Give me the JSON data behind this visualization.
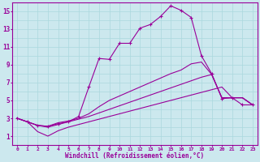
{
  "xlabel": "Windchill (Refroidissement éolien,°C)",
  "bg_color": "#cce8ee",
  "line_color": "#990099",
  "grid_color": "#aad8dd",
  "xlim": [
    -0.5,
    23.5
  ],
  "ylim": [
    0,
    16
  ],
  "yticks": [
    1,
    3,
    5,
    7,
    9,
    11,
    13,
    15
  ],
  "xticks": [
    0,
    1,
    2,
    3,
    4,
    5,
    6,
    7,
    8,
    9,
    10,
    11,
    12,
    13,
    14,
    15,
    16,
    17,
    18,
    19,
    20,
    21,
    22,
    23
  ],
  "xgrid": [
    0,
    1,
    2,
    3,
    4,
    5,
    6,
    7,
    8,
    9,
    10,
    11,
    12,
    13,
    14,
    15,
    16,
    17,
    18,
    19,
    20,
    21,
    22,
    23
  ],
  "ygrid": [
    1,
    2,
    3,
    4,
    5,
    6,
    7,
    8,
    9,
    10,
    11,
    12,
    13,
    14,
    15
  ],
  "curve1_x": [
    0,
    1,
    2,
    3,
    4,
    5,
    6,
    7,
    8,
    9,
    10,
    11,
    12,
    13,
    14,
    15,
    16,
    17,
    18,
    19,
    20,
    21,
    22,
    23
  ],
  "curve1_y": [
    3.0,
    2.6,
    2.2,
    2.1,
    2.4,
    2.6,
    3.2,
    6.5,
    9.7,
    9.6,
    11.4,
    11.4,
    13.1,
    13.5,
    14.4,
    15.6,
    15.1,
    14.3,
    10.1,
    null,
    null,
    null,
    null,
    null
  ],
  "curve1_x2": [
    18,
    19,
    20,
    21,
    22,
    23
  ],
  "curve1_y2": [
    14.3,
    10.1,
    null,
    null,
    null,
    null
  ],
  "curve_top_x": [
    0,
    1,
    2,
    3,
    4,
    5,
    6,
    7,
    8,
    9,
    10,
    11,
    12,
    13,
    14,
    15,
    16,
    17,
    18,
    19,
    20,
    21,
    22,
    23
  ],
  "curve_top_y": [
    3.0,
    2.6,
    2.2,
    2.1,
    2.4,
    2.6,
    3.2,
    6.5,
    9.7,
    9.6,
    11.4,
    11.4,
    13.1,
    13.5,
    14.4,
    15.6,
    15.1,
    14.3,
    10.0,
    8.0,
    5.2,
    5.3,
    4.5,
    4.5
  ],
  "curve2_x": [
    0,
    1,
    2,
    3,
    4,
    5,
    6,
    7,
    8,
    9,
    10,
    11,
    12,
    13,
    14,
    15,
    16,
    17,
    18,
    19,
    20,
    21,
    22,
    23
  ],
  "curve2_y": [
    3.0,
    2.6,
    2.2,
    2.1,
    2.5,
    2.7,
    3.0,
    3.5,
    4.3,
    5.0,
    5.5,
    6.0,
    6.5,
    7.0,
    7.5,
    8.0,
    8.4,
    9.1,
    9.3,
    7.9,
    5.3,
    5.3,
    5.3,
    4.5
  ],
  "curve3_x": [
    0,
    1,
    2,
    3,
    4,
    5,
    6,
    7,
    8,
    9,
    10,
    11,
    12,
    13,
    14,
    15,
    16,
    17,
    18,
    19,
    20,
    21,
    22,
    23
  ],
  "curve3_y": [
    3.0,
    2.6,
    2.2,
    2.0,
    2.3,
    2.6,
    2.9,
    3.2,
    3.6,
    4.0,
    4.4,
    4.8,
    5.2,
    5.6,
    6.0,
    6.4,
    6.8,
    7.2,
    7.6,
    7.9,
    5.3,
    5.3,
    5.3,
    4.5
  ],
  "curve4_x": [
    0,
    1,
    2,
    3,
    4,
    5,
    6,
    7,
    8,
    9,
    10,
    11,
    12,
    13,
    14,
    15,
    16,
    17,
    18,
    19,
    20,
    21,
    22,
    23
  ],
  "curve4_y": [
    3.0,
    2.6,
    1.5,
    1.0,
    1.6,
    2.0,
    2.3,
    2.6,
    2.9,
    3.2,
    3.5,
    3.8,
    4.1,
    4.4,
    4.7,
    5.0,
    5.3,
    5.6,
    5.9,
    6.2,
    6.5,
    5.3,
    5.3,
    4.5
  ]
}
